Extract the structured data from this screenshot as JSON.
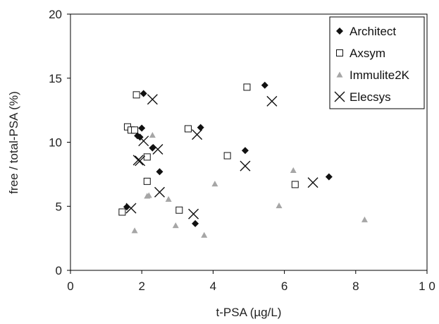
{
  "chart_data": {
    "type": "scatter",
    "xlabel": "t-PSA (µg/L)",
    "ylabel": "free / total-PSA (%)",
    "xlim": [
      0,
      10
    ],
    "ylim": [
      0,
      20
    ],
    "xticks": [
      0,
      2,
      4,
      6,
      8,
      10
    ],
    "xtick_labels": [
      "0",
      "2",
      "4",
      "6",
      "8",
      "1 0"
    ],
    "yticks": [
      0,
      5,
      10,
      15,
      20
    ],
    "ytick_labels": [
      "0",
      "5",
      "10",
      "15",
      "20"
    ],
    "grid": false,
    "legend_position": "top-right",
    "series": [
      {
        "name": "Architect",
        "marker": "diamond",
        "color": "#111111",
        "points": [
          [
            1.58,
            4.95
          ],
          [
            1.95,
            10.4
          ],
          [
            1.88,
            10.5
          ],
          [
            2.0,
            11.1
          ],
          [
            2.05,
            13.8
          ],
          [
            2.3,
            9.55
          ],
          [
            2.5,
            7.7
          ],
          [
            3.5,
            3.65
          ],
          [
            3.65,
            11.15
          ],
          [
            4.9,
            9.35
          ],
          [
            5.45,
            14.45
          ],
          [
            7.25,
            7.3
          ]
        ]
      },
      {
        "name": "Axsym",
        "marker": "square-open",
        "color": "#111111",
        "points": [
          [
            1.45,
            4.55
          ],
          [
            1.6,
            11.2
          ],
          [
            1.7,
            10.95
          ],
          [
            1.8,
            10.95
          ],
          [
            1.85,
            13.7
          ],
          [
            2.15,
            6.95
          ],
          [
            2.15,
            8.85
          ],
          [
            3.05,
            4.7
          ],
          [
            3.3,
            11.05
          ],
          [
            4.4,
            8.95
          ],
          [
            4.95,
            14.3
          ],
          [
            6.3,
            6.7
          ]
        ]
      },
      {
        "name": "Immulite2K",
        "marker": "triangle",
        "color": "#a6a6a6",
        "points": [
          [
            1.8,
            3.1
          ],
          [
            2.15,
            5.8
          ],
          [
            2.2,
            5.85
          ],
          [
            2.3,
            10.55
          ],
          [
            2.75,
            5.55
          ],
          [
            2.95,
            3.5
          ],
          [
            3.75,
            2.75
          ],
          [
            4.05,
            6.75
          ],
          [
            5.85,
            5.05
          ],
          [
            6.25,
            7.8
          ],
          [
            8.25,
            3.95
          ]
        ]
      },
      {
        "name": "Elecsys",
        "marker": "x",
        "color": "#111111",
        "points": [
          [
            1.7,
            4.85
          ],
          [
            1.9,
            8.6
          ],
          [
            1.95,
            8.55
          ],
          [
            2.05,
            10.1
          ],
          [
            2.3,
            13.35
          ],
          [
            2.45,
            9.45
          ],
          [
            2.5,
            6.1
          ],
          [
            3.45,
            4.4
          ],
          [
            3.55,
            10.6
          ],
          [
            4.9,
            8.15
          ],
          [
            5.65,
            13.2
          ],
          [
            6.8,
            6.85
          ]
        ]
      }
    ]
  }
}
